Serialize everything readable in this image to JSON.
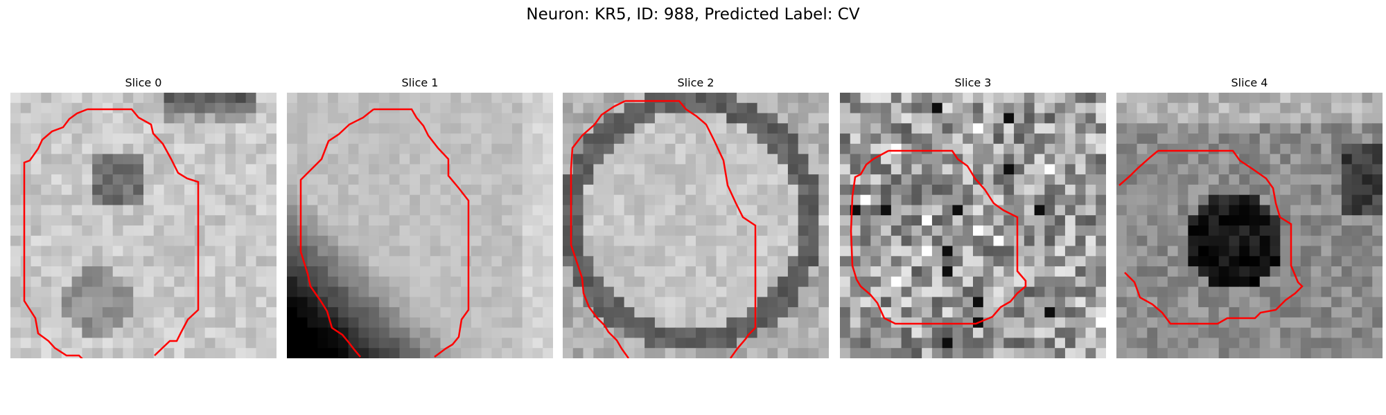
{
  "figure": {
    "title": "Neuron: KR5, ID: 988, Predicted Label: CV"
  },
  "panels": [
    {
      "title": "Slice 0",
      "style": "bright textured cell body with dark nucleus region and dark upper background",
      "contour_color": "#ff0000"
    },
    {
      "title": "Slice 1",
      "style": "smooth bright blob with very dark lower-left corner",
      "contour_color": "#ff0000"
    },
    {
      "title": "Slice 2",
      "style": "bright round cell with dark ring border",
      "contour_color": "#ff0000"
    },
    {
      "title": "Slice 3",
      "style": "noisy gray speckle texture",
      "contour_color": "#ff0000"
    },
    {
      "title": "Slice 4",
      "style": "mid-gray texture with dark blob at lower center",
      "contour_color": "#ff0000"
    }
  ]
}
